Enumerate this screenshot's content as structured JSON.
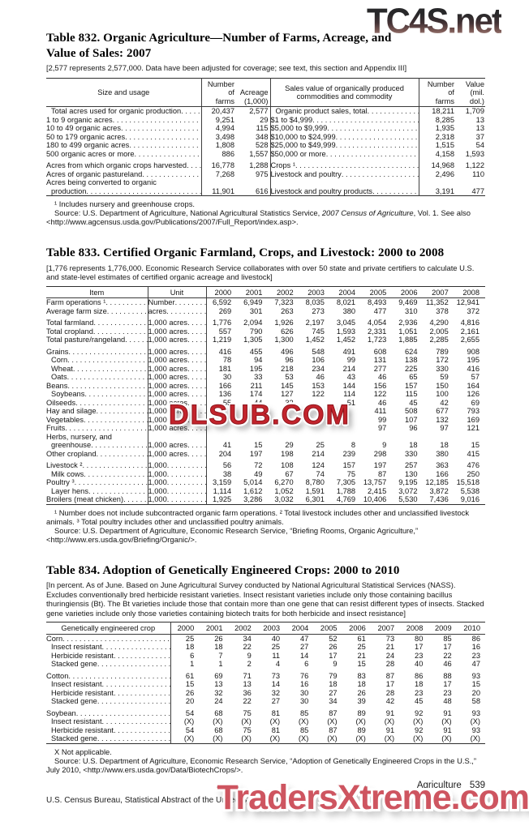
{
  "watermarks": {
    "top_right": "TC4S.net",
    "center": "DLSUB.COM",
    "bottom_right": "TradersXtreme.com"
  },
  "footer": {
    "left": "U.S. Census Bureau, Statistical Abstract of the United States: 2012",
    "section": "Agriculture",
    "page_number": "539"
  },
  "table832": {
    "title": "Table 832. Organic Agriculture—Number of Farms, Acreage, and\nValue of Sales: 2007",
    "bracket_note": "[2,577 represents 2,577,000. Data have been adjusted for coverage; see text, this section and Appendix III]",
    "headers": {
      "stub": "Size and usage",
      "farms": "Number\nof\nfarms",
      "acreage": "Acreage\n(1,000)",
      "sales": "Sales value of organically produced\ncommodities and commodity",
      "farms2": "Number\nof\nfarms",
      "value": "Value\n(mil. dol.)"
    },
    "rows": [
      {
        "l": "Total acres used for organic production",
        "li": 1,
        "f": "20,437",
        "a": "2,577",
        "r": "Organic product sales, total",
        "ri": 1,
        "f2": "18,211",
        "v": "1,709"
      },
      {
        "l": "1 to 9 organic acres",
        "f": "9,251",
        "a": "29",
        "r": "$1 to $4,999",
        "f2": "8,285",
        "v": "13"
      },
      {
        "l": "10 to 49 organic acres",
        "f": "4,994",
        "a": "115",
        "r": "$5,000 to $9,999",
        "f2": "1,935",
        "v": "13"
      },
      {
        "l": "50 to 179 organic acres",
        "f": "3,498",
        "a": "348",
        "r": "$10,000 to $24,999",
        "f2": "2,318",
        "v": "37"
      },
      {
        "l": "180 to 499 organic acres",
        "f": "1,808",
        "a": "528",
        "r": "$25,000 to $49,999",
        "f2": "1,515",
        "v": "54"
      },
      {
        "l": "500 organic acres or more",
        "f": "886",
        "a": "1,557",
        "r": "$50,000 or more",
        "f2": "4,158",
        "v": "1,593"
      },
      {
        "spacer": true
      },
      {
        "l": "Acres from which organic crops harvested",
        "f": "16,778",
        "a": "1,288",
        "r": "Crops ¹",
        "f2": "14,968",
        "v": "1,122"
      },
      {
        "l": "Acres of organic pastureland",
        "f": "7,268",
        "a": "975",
        "r": "Livestock and poultry",
        "f2": "2,496",
        "v": "110"
      },
      {
        "l": "Acres being converted to organic",
        "wrap": true
      },
      {
        "l": "production",
        "li": 1,
        "f": "11,901",
        "a": "616",
        "r": "Livestock and poultry products",
        "f2": "3,191",
        "v": "477"
      }
    ],
    "footnote": "¹ Includes nursery and greenhouse crops.",
    "source_pre": "Source: U.S. Department of Agriculture, National Agricultural Statistics Service, ",
    "source_italic": "2007 Census of Agriculture",
    "source_post": ", Vol. 1. See also <http://www.agcensus.usda.gov/Publications/2007/Full_Report/index.asp>."
  },
  "table833": {
    "title": "Table 833. Certified Organic Farmland, Crops, and Livestock: 2000 to 2008",
    "bracket_note": "[1,776 represents 1,776,000. Economic Research Service collaborates with over 50 state and private certifiers to calculate U.S. and state-level estimates of certified organic acreage and livestock]",
    "headers": {
      "item": "Item",
      "unit": "Unit"
    },
    "years": [
      "2000",
      "2001",
      "2002",
      "2003",
      "2004",
      "2005",
      "2006",
      "2007",
      "2008"
    ],
    "rows": [
      {
        "l": "Farm operations ¹",
        "u": "Number",
        "v": [
          "6,592",
          "6,949",
          "7,323",
          "8,035",
          "8,021",
          "8,493",
          "9,469",
          "11,352",
          "12,941"
        ]
      },
      {
        "l": "Average farm size",
        "u": "acres",
        "v": [
          "269",
          "301",
          "263",
          "273",
          "380",
          "477",
          "310",
          "378",
          "372"
        ]
      },
      {
        "spacer": true
      },
      {
        "l": "Total farmland",
        "u": "1,000 acres",
        "v": [
          "1,776",
          "2,094",
          "1,926",
          "2,197",
          "3,045",
          "4,054",
          "2,936",
          "4,290",
          "4,816"
        ]
      },
      {
        "l": "Total cropland",
        "u": "1,000 acres",
        "v": [
          "557",
          "790",
          "626",
          "745",
          "1,593",
          "2,331",
          "1,051",
          "2,005",
          "2,161"
        ]
      },
      {
        "l": "Total pasture/rangeland",
        "u": "1,000 acres",
        "v": [
          "1,219",
          "1,305",
          "1,300",
          "1,452",
          "1,452",
          "1,723",
          "1,885",
          "2,285",
          "2,655"
        ]
      },
      {
        "spacer": true
      },
      {
        "l": "Grains",
        "u": "1,000 acres",
        "v": [
          "416",
          "455",
          "496",
          "548",
          "491",
          "608",
          "624",
          "789",
          "908"
        ]
      },
      {
        "l": "Corn",
        "i": 1,
        "u": "1,000 acres",
        "v": [
          "78",
          "94",
          "96",
          "106",
          "99",
          "131",
          "138",
          "172",
          "195"
        ]
      },
      {
        "l": "Wheat",
        "i": 1,
        "u": "1,000 acres",
        "v": [
          "181",
          "195",
          "218",
          "234",
          "214",
          "277",
          "225",
          "330",
          "416"
        ]
      },
      {
        "l": "Oats",
        "i": 1,
        "u": "1,000 acres",
        "v": [
          "30",
          "33",
          "53",
          "46",
          "43",
          "46",
          "65",
          "59",
          "57"
        ]
      },
      {
        "l": "Beans",
        "u": "1,000 acres",
        "v": [
          "166",
          "211",
          "145",
          "153",
          "144",
          "156",
          "157",
          "150",
          "164"
        ]
      },
      {
        "l": "Soybeans",
        "i": 1,
        "u": "1,000 acres",
        "v": [
          "136",
          "174",
          "127",
          "122",
          "114",
          "122",
          "115",
          "100",
          "126"
        ]
      },
      {
        "l": "Oilseeds",
        "u": "1,000 acres",
        "v": [
          "55",
          "44",
          "32",
          "",
          "51",
          "46",
          "45",
          "42",
          "69"
        ]
      },
      {
        "l": "Hay and silage",
        "u": "1,000 acres",
        "v": [
          "",
          "",
          "",
          "",
          "",
          "411",
          "508",
          "677",
          "793"
        ]
      },
      {
        "l": "Vegetables",
        "u": "1,000 acres",
        "v": [
          "",
          "",
          "",
          "",
          "",
          "99",
          "107",
          "132",
          "169"
        ]
      },
      {
        "l": "Fruits",
        "u": "1,000 acres",
        "v": [
          "",
          "",
          "",
          "",
          "",
          "97",
          "96",
          "97",
          "121"
        ]
      },
      {
        "l": "Herbs, nursery, and",
        "wrap": true
      },
      {
        "l": "greenhouse",
        "i": 1,
        "u": "1,000 acres",
        "v": [
          "41",
          "15",
          "29",
          "25",
          "8",
          "9",
          "18",
          "18",
          "15"
        ]
      },
      {
        "l": "Other cropland",
        "u": "1,000 acres",
        "v": [
          "204",
          "197",
          "198",
          "214",
          "239",
          "298",
          "330",
          "380",
          "415"
        ]
      },
      {
        "spacer": true
      },
      {
        "l": "Livestock ²",
        "u": "1,000",
        "v": [
          "56",
          "72",
          "108",
          "124",
          "157",
          "197",
          "257",
          "363",
          "476"
        ]
      },
      {
        "l": "Milk cows",
        "i": 1,
        "u": "1,000",
        "v": [
          "38",
          "49",
          "67",
          "74",
          "75",
          "87",
          "130",
          "166",
          "250"
        ]
      },
      {
        "l": "Poultry ³",
        "u": "1,000",
        "v": [
          "3,159",
          "5,014",
          "6,270",
          "8,780",
          "7,305",
          "13,757",
          "9,195",
          "12,185",
          "15,518"
        ]
      },
      {
        "l": "Layer hens",
        "i": 1,
        "u": "1,000",
        "v": [
          "1,114",
          "1,612",
          "1,052",
          "1,591",
          "1,788",
          "2,415",
          "3,072",
          "3,872",
          "5,538"
        ]
      },
      {
        "l": "Broilers (meat chicken)",
        "u": "1,000",
        "v": [
          "1,925",
          "3,286",
          "3,032",
          "6,301",
          "4,769",
          "10,406",
          "5,530",
          "7,436",
          "9,016"
        ]
      }
    ],
    "footnote": "¹ Number does not include subcontracted organic farm operations. ² Total livestock includes other and unclassified livestock animals. ³ Total poultry includes other and unclassified poultry animals.",
    "source": "Source: U.S. Department of Agriculture, Economic Research Service, “Briefing Rooms, Organic Agriculture,” <http://www.ers.usda.gov/Briefing/Organic/>."
  },
  "table834": {
    "title": "Table 834. Adoption of Genetically Engineered Crops: 2000 to 2010",
    "bracket_note": "[In percent. As of June. Based on June Agricultural Survey conducted by National Agricultural Statistical Services (NASS). Excludes conventionally bred herbicide resistant varieties. Insect resistant varieties include only those containing bacillus thuringiensis (Bt). The Bt varieties include those that contain more than one gene that can resist different types of insects. Stacked gene varieties include only those varieties containing biotech traits for both herbicide and insect resistance]",
    "headers": {
      "stub": "Genetically engineered crop"
    },
    "years": [
      "2000",
      "2001",
      "2002",
      "2003",
      "2004",
      "2005",
      "2006",
      "2007",
      "2008",
      "2009",
      "2010"
    ],
    "rows": [
      {
        "l": "Corn",
        "v": [
          "25",
          "26",
          "34",
          "40",
          "47",
          "52",
          "61",
          "73",
          "80",
          "85",
          "86"
        ]
      },
      {
        "l": "Insect resistant",
        "i": 1,
        "v": [
          "18",
          "18",
          "22",
          "25",
          "27",
          "26",
          "25",
          "21",
          "17",
          "17",
          "16"
        ]
      },
      {
        "l": "Herbicide resistant",
        "i": 1,
        "v": [
          "6",
          "7",
          "9",
          "11",
          "14",
          "17",
          "21",
          "24",
          "23",
          "22",
          "23"
        ]
      },
      {
        "l": "Stacked gene",
        "i": 1,
        "v": [
          "1",
          "1",
          "2",
          "4",
          "6",
          "9",
          "15",
          "28",
          "40",
          "46",
          "47"
        ]
      },
      {
        "spacer": true
      },
      {
        "l": "Cotton",
        "v": [
          "61",
          "69",
          "71",
          "73",
          "76",
          "79",
          "83",
          "87",
          "86",
          "88",
          "93"
        ]
      },
      {
        "l": "Insect resistant",
        "i": 1,
        "v": [
          "15",
          "13",
          "13",
          "14",
          "16",
          "18",
          "18",
          "17",
          "18",
          "17",
          "15"
        ]
      },
      {
        "l": "Herbicide resistant",
        "i": 1,
        "v": [
          "26",
          "32",
          "36",
          "32",
          "30",
          "27",
          "26",
          "28",
          "23",
          "23",
          "20"
        ]
      },
      {
        "l": "Stacked gene",
        "i": 1,
        "v": [
          "20",
          "24",
          "22",
          "27",
          "30",
          "34",
          "39",
          "42",
          "45",
          "48",
          "58"
        ]
      },
      {
        "spacer": true
      },
      {
        "l": "Soybean",
        "v": [
          "54",
          "68",
          "75",
          "81",
          "85",
          "87",
          "89",
          "91",
          "92",
          "91",
          "93"
        ]
      },
      {
        "l": "Insect resistant",
        "i": 1,
        "v": [
          "(X)",
          "(X)",
          "(X)",
          "(X)",
          "(X)",
          "(X)",
          "(X)",
          "(X)",
          "(X)",
          "(X)",
          "(X)"
        ]
      },
      {
        "l": "Herbicide resistant",
        "i": 1,
        "v": [
          "54",
          "68",
          "75",
          "81",
          "85",
          "87",
          "89",
          "91",
          "92",
          "91",
          "93"
        ]
      },
      {
        "l": "Stacked gene",
        "i": 1,
        "v": [
          "(X)",
          "(X)",
          "(X)",
          "(X)",
          "(X)",
          "(X)",
          "(X)",
          "(X)",
          "(X)",
          "(X)",
          "(X)"
        ]
      }
    ],
    "footnote": "X Not applicable.",
    "source": "Source: U.S. Department of Agriculture, Economic Research Service, “Adoption of Genetically Engineered Crops in the U.S.,” July 2010, <http://www.ers.usda.gov/Data/BiotechCrops/>."
  }
}
